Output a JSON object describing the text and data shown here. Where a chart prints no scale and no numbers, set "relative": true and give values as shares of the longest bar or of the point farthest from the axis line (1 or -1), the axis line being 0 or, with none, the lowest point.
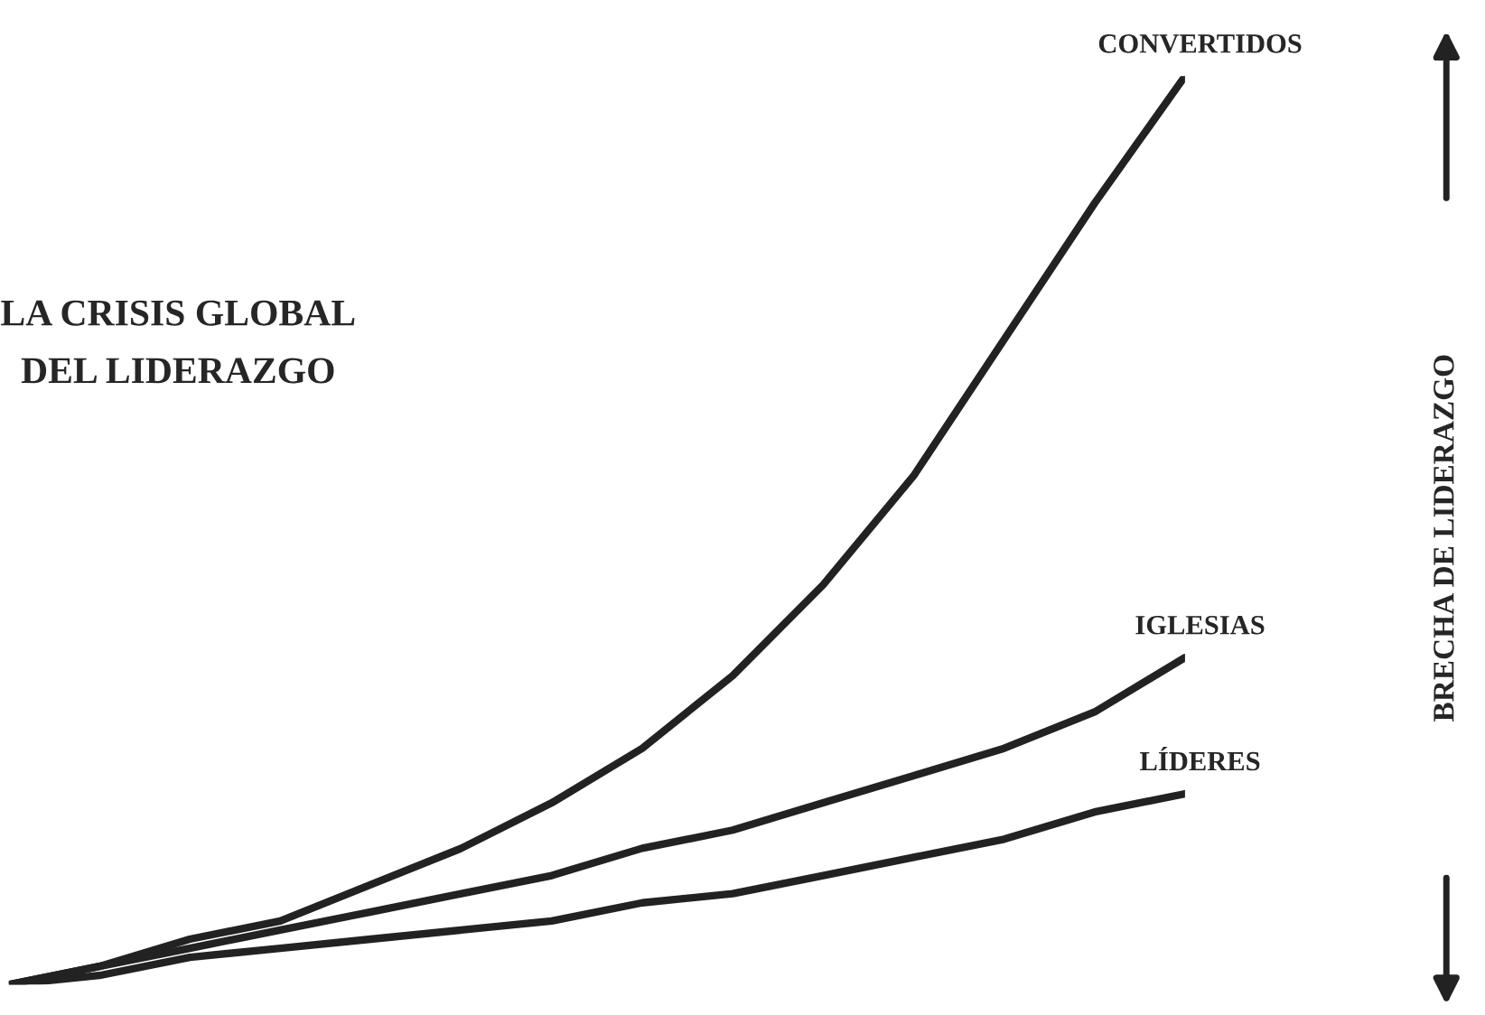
{
  "chart_data": {
    "type": "line",
    "relative": true,
    "title": "LA CRISIS GLOBAL DEL LIDERAZGO",
    "annotations": [
      "BRECHA DE LIDERAZGO"
    ],
    "categories": [
      null,
      null,
      null,
      null,
      null,
      null,
      null,
      null,
      null,
      null,
      null,
      null,
      null,
      null
    ],
    "legend": false,
    "marker": "none",
    "line_style": "solid",
    "series": [
      {
        "name": "CONVERTIDOS",
        "color": "#222222",
        "values": [
          0,
          0.02,
          0.05,
          0.07,
          0.11,
          0.15,
          0.2,
          0.26,
          0.34,
          0.44,
          0.56,
          0.71,
          0.86,
          1
        ]
      },
      {
        "name": "IGLESIAS",
        "color": "#222222",
        "values": [
          0,
          0.02,
          0.04,
          0.06,
          0.08,
          0.1,
          0.12,
          0.15,
          0.17,
          0.2,
          0.23,
          0.26,
          0.3,
          0.36
        ]
      },
      {
        "name": "LÍDERES",
        "color": "#222222",
        "values": [
          0,
          0.01,
          0.03,
          0.04,
          0.05,
          0.06,
          0.07,
          0.09,
          0.1,
          0.12,
          0.14,
          0.16,
          0.19,
          0.21
        ]
      }
    ]
  }
}
